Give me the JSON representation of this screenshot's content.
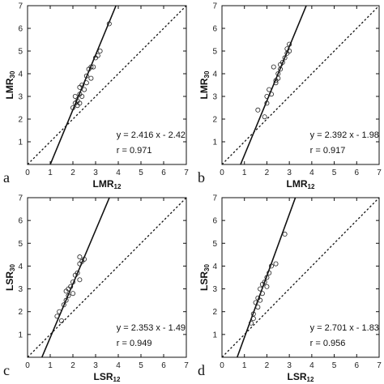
{
  "chart_data": [
    {
      "type": "scatter",
      "panel_label": "a",
      "xlabel": {
        "main": "LMR",
        "sub": "12"
      },
      "ylabel": {
        "main": "LMR",
        "sub": "30"
      },
      "xlim": [
        0,
        7
      ],
      "ylim": [
        0,
        7
      ],
      "xticks": [
        "0",
        "1",
        "2",
        "3",
        "4",
        "5",
        "6",
        "7"
      ],
      "yticks": [
        "1",
        "2",
        "3",
        "4",
        "5",
        "6",
        "7"
      ],
      "equation": "y = 2.416 x - 2.42",
      "r_text": "r = 0.971",
      "fit": {
        "slope": 2.416,
        "intercept": -2.42
      },
      "identity_line": true,
      "points": [
        [
          2.0,
          2.5
        ],
        [
          2.1,
          2.7
        ],
        [
          2.1,
          3.0
        ],
        [
          2.2,
          2.6
        ],
        [
          2.2,
          2.8
        ],
        [
          2.3,
          3.1
        ],
        [
          2.3,
          3.4
        ],
        [
          2.3,
          2.7
        ],
        [
          2.4,
          3.0
        ],
        [
          2.4,
          3.5
        ],
        [
          2.5,
          3.3
        ],
        [
          2.6,
          3.9
        ],
        [
          2.6,
          3.6
        ],
        [
          2.7,
          4.2
        ],
        [
          2.8,
          4.3
        ],
        [
          2.8,
          3.8
        ],
        [
          2.9,
          4.3
        ],
        [
          3.0,
          4.7
        ],
        [
          3.1,
          4.8
        ],
        [
          3.2,
          5.0
        ],
        [
          3.6,
          6.2
        ]
      ]
    },
    {
      "type": "scatter",
      "panel_label": "b",
      "xlabel": {
        "main": "LMR",
        "sub": "12"
      },
      "ylabel": {
        "main": "LMR",
        "sub": "30"
      },
      "xlim": [
        0,
        7
      ],
      "ylim": [
        0,
        7
      ],
      "xticks": [
        "0",
        "1",
        "2",
        "3",
        "4",
        "5",
        "6",
        "7"
      ],
      "yticks": [
        "1",
        "2",
        "3",
        "4",
        "5",
        "6",
        "7"
      ],
      "equation": "y = 2.392 x - 1.98",
      "r_text": "r = 0.917",
      "fit": {
        "slope": 2.392,
        "intercept": -1.98
      },
      "identity_line": true,
      "points": [
        [
          1.6,
          2.4
        ],
        [
          1.9,
          2.1
        ],
        [
          2.0,
          2.7
        ],
        [
          2.0,
          3.0
        ],
        [
          2.1,
          3.3
        ],
        [
          2.2,
          3.1
        ],
        [
          2.3,
          4.3
        ],
        [
          2.4,
          3.7
        ],
        [
          2.4,
          3.6
        ],
        [
          2.5,
          4.0
        ],
        [
          2.5,
          3.8
        ],
        [
          2.6,
          4.4
        ],
        [
          2.6,
          4.2
        ],
        [
          2.7,
          4.5
        ],
        [
          2.8,
          4.7
        ],
        [
          2.9,
          5.1
        ],
        [
          2.9,
          4.9
        ],
        [
          3.0,
          5.3
        ],
        [
          3.0,
          5.0
        ]
      ]
    },
    {
      "type": "scatter",
      "panel_label": "c",
      "xlabel": {
        "main": "LSR",
        "sub": "12"
      },
      "ylabel": {
        "main": "LSR",
        "sub": "30"
      },
      "xlim": [
        0,
        7
      ],
      "ylim": [
        0,
        7
      ],
      "xticks": [
        "0",
        "1",
        "2",
        "3",
        "4",
        "5",
        "6",
        "7"
      ],
      "yticks": [
        "1",
        "2",
        "3",
        "4",
        "5",
        "6",
        "7"
      ],
      "equation": "y = 2.353 x - 1.49",
      "r_text": "r = 0.949",
      "fit": {
        "slope": 2.353,
        "intercept": -1.49
      },
      "identity_line": true,
      "points": [
        [
          1.3,
          1.8
        ],
        [
          1.4,
          2.0
        ],
        [
          1.5,
          1.6
        ],
        [
          1.6,
          2.3
        ],
        [
          1.7,
          2.5
        ],
        [
          1.7,
          2.9
        ],
        [
          1.8,
          2.7
        ],
        [
          1.8,
          3.0
        ],
        [
          1.9,
          3.1
        ],
        [
          2.0,
          2.8
        ],
        [
          2.0,
          3.3
        ],
        [
          2.1,
          3.6
        ],
        [
          2.2,
          3.7
        ],
        [
          2.3,
          3.4
        ],
        [
          2.3,
          4.1
        ],
        [
          2.3,
          4.4
        ],
        [
          2.4,
          4.2
        ],
        [
          2.5,
          4.3
        ]
      ]
    },
    {
      "type": "scatter",
      "panel_label": "d",
      "xlabel": {
        "main": "LSR",
        "sub": "12"
      },
      "ylabel": {
        "main": "LSR",
        "sub": "30"
      },
      "xlim": [
        0,
        7
      ],
      "ylim": [
        0,
        7
      ],
      "xticks": [
        "0",
        "1",
        "2",
        "3",
        "4",
        "5",
        "6",
        "7"
      ],
      "yticks": [
        "1",
        "2",
        "3",
        "4",
        "5",
        "6",
        "7"
      ],
      "equation": "y = 2.701 x - 1.83",
      "r_text": "r = 0.956",
      "fit": {
        "slope": 2.701,
        "intercept": -1.83
      },
      "identity_line": true,
      "points": [
        [
          1.3,
          1.5
        ],
        [
          1.4,
          1.9
        ],
        [
          1.4,
          1.7
        ],
        [
          1.5,
          2.4
        ],
        [
          1.6,
          2.2
        ],
        [
          1.6,
          2.6
        ],
        [
          1.7,
          2.5
        ],
        [
          1.7,
          3.0
        ],
        [
          1.8,
          3.2
        ],
        [
          1.8,
          2.8
        ],
        [
          1.9,
          3.3
        ],
        [
          2.0,
          3.5
        ],
        [
          2.0,
          3.1
        ],
        [
          2.1,
          3.7
        ],
        [
          2.2,
          4.0
        ],
        [
          2.4,
          4.1
        ],
        [
          2.8,
          5.4
        ]
      ]
    }
  ]
}
